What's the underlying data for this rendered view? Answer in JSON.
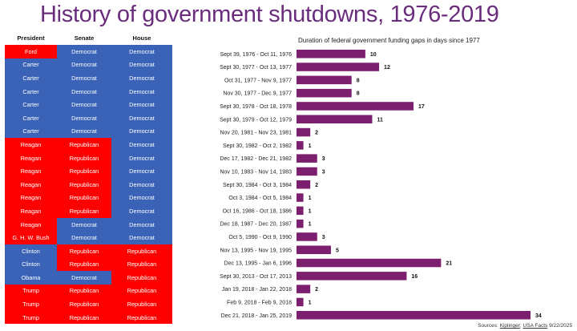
{
  "title": "History of government shutdowns, 1976-2019",
  "table": {
    "headers": [
      "President",
      "Senate",
      "House"
    ],
    "colors": {
      "Democrat": "#3a63b8",
      "Republican": "#ff0000"
    },
    "rows": [
      [
        "Ford",
        "Democrat",
        "Democrat",
        "R"
      ],
      [
        "Carter",
        "Democrat",
        "Democrat",
        "D"
      ],
      [
        "Carter",
        "Democrat",
        "Democrat",
        "D"
      ],
      [
        "Carter",
        "Democrat",
        "Democrat",
        "D"
      ],
      [
        "Carter",
        "Democrat",
        "Democrat",
        "D"
      ],
      [
        "Carter",
        "Democrat",
        "Democrat",
        "D"
      ],
      [
        "Carter",
        "Democrat",
        "Democrat",
        "D"
      ],
      [
        "Reagan",
        "Republican",
        "Democrat",
        "R"
      ],
      [
        "Reagan",
        "Republican",
        "Democrat",
        "R"
      ],
      [
        "Reagan",
        "Republican",
        "Democrat",
        "R"
      ],
      [
        "Reagan",
        "Republican",
        "Democrat",
        "R"
      ],
      [
        "Reagan",
        "Republican",
        "Democrat",
        "R"
      ],
      [
        "Reagan",
        "Republican",
        "Democrat",
        "R"
      ],
      [
        "Reagan",
        "Democrat",
        "Democrat",
        "R"
      ],
      [
        "G. H. W. Bush",
        "Democrat",
        "Democrat",
        "R"
      ],
      [
        "Clinton",
        "Republican",
        "Republican",
        "D"
      ],
      [
        "Clinton",
        "Republican",
        "Republican",
        "D"
      ],
      [
        "Obama",
        "Democrat",
        "Republican",
        "D"
      ],
      [
        "Trump",
        "Republican",
        "Republican",
        "R"
      ],
      [
        "Trump",
        "Republican",
        "Republican",
        "R"
      ],
      [
        "Trump",
        "Republican",
        "Republican",
        "R"
      ]
    ]
  },
  "chart_data": {
    "type": "bar",
    "orientation": "horizontal",
    "title": "Duration of federal government funding gaps in days since 1977",
    "bar_color": "#7b1f6e",
    "categories": [
      "Sept 39, 1976 - Oct 11, 1976",
      "Sept 30, 1977 - Oct 13, 1977",
      "Oct 31, 1977 - Nov 9, 1977",
      "Nov 30, 1977 - Dec 9, 1977",
      "Sept 30, 1978 - Oct 18, 1978",
      "Sept 30, 1979 - Oct 12, 1979",
      "Nov 20, 1981 - Nov 23, 1981",
      "Sept 30, 1982 - Oct 2, 1982",
      "Dec 17, 1982 - Dec 21, 1982",
      "Nov 10, 1983 - Nov 14, 1983",
      "Sept 30, 1984 - Oct 3, 1984",
      "Oct 3, 1984 - Oct 5, 1984",
      "Oct 16, 1986 - Oct 18, 1986",
      "Dec 18, 1987 - Dec 20, 1987",
      "Oct 5, 1990 - Oct 9, 1990",
      "Nov 13, 1995 - Nov 19, 1995",
      "Dec 13, 1995 - Jan 6, 1996",
      "Sept 30, 2013 - Oct 17, 2013",
      "Jan 19, 2018 - Jan 22, 2018",
      "Feb 9, 2018 - Feb 9, 2018",
      "Dec 21, 2018 - Jan 25, 2019"
    ],
    "values": [
      10,
      12,
      8,
      8,
      17,
      11,
      2,
      1,
      3,
      3,
      2,
      1,
      1,
      1,
      3,
      5,
      21,
      16,
      2,
      1,
      34
    ],
    "xlim": [
      0,
      34
    ]
  },
  "source": {
    "prefix": "Sources: ",
    "src1": "Kiplinger",
    "sep": "; ",
    "src2": "USA Facts",
    "date": " 9/22/2025"
  }
}
